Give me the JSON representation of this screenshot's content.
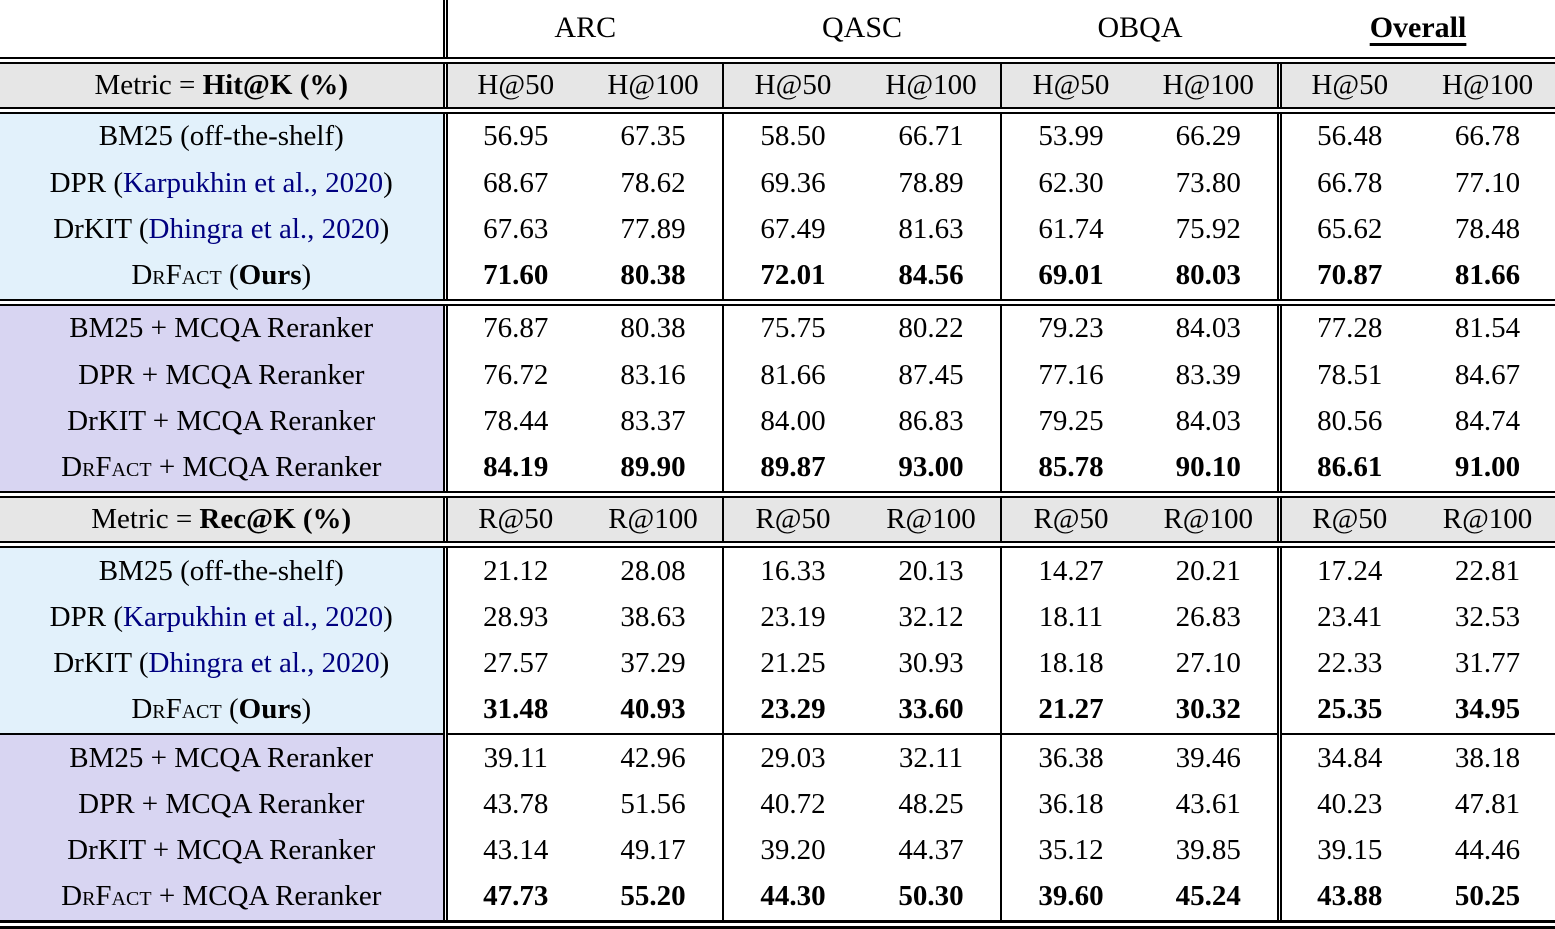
{
  "colors": {
    "header_band_bg": "#e6e6e6",
    "retriever_block_bg": "#e2f1fb",
    "reranker_block_bg": "#d8d5f2",
    "citation_color": "#000080"
  },
  "table": {
    "dataset_headers": [
      {
        "label": "ARC"
      },
      {
        "label": "QASC"
      },
      {
        "label": "OBQA"
      },
      {
        "label": "Overall",
        "bold": true,
        "underline": true
      }
    ],
    "sections": [
      {
        "metric": {
          "prefix": "Metric = ",
          "bold": "Hit@K",
          "suffix": " (%)"
        },
        "subheaders": [
          "H@50",
          "H@100",
          "H@50",
          "H@100",
          "H@50",
          "H@100",
          "H@50",
          "H@100"
        ],
        "blocks": [
          {
            "bg_key": "retriever_block_bg",
            "rows": [
              {
                "method": [
                  {
                    "text": "BM25 (off-the-shelf)"
                  }
                ],
                "values": [
                  "56.95",
                  "67.35",
                  "58.50",
                  "66.71",
                  "53.99",
                  "66.29",
                  "56.48",
                  "66.78"
                ],
                "bold_values": false
              },
              {
                "method": [
                  {
                    "text": "DPR ("
                  },
                  {
                    "text": "Karpukhin et al., 2020",
                    "style": "cite"
                  },
                  {
                    "text": ")"
                  }
                ],
                "values": [
                  "68.67",
                  "78.62",
                  "69.36",
                  "78.89",
                  "62.30",
                  "73.80",
                  "66.78",
                  "77.10"
                ],
                "bold_values": false
              },
              {
                "method": [
                  {
                    "text": "DrKIT ("
                  },
                  {
                    "text": "Dhingra et al., 2020",
                    "style": "cite"
                  },
                  {
                    "text": ")"
                  }
                ],
                "values": [
                  "67.63",
                  "77.89",
                  "67.49",
                  "81.63",
                  "61.74",
                  "75.92",
                  "65.62",
                  "78.48"
                ],
                "bold_values": false
              },
              {
                "method": [
                  {
                    "text": "DrFact",
                    "style": "smallcaps"
                  },
                  {
                    "text": " ("
                  },
                  {
                    "text": "Ours",
                    "style": "bold"
                  },
                  {
                    "text": ")"
                  }
                ],
                "values": [
                  "71.60",
                  "80.38",
                  "72.01",
                  "84.56",
                  "69.01",
                  "80.03",
                  "70.87",
                  "81.66"
                ],
                "bold_values": true
              }
            ]
          },
          {
            "bg_key": "reranker_block_bg",
            "rows": [
              {
                "method": [
                  {
                    "text": "BM25 + MCQA Reranker"
                  }
                ],
                "values": [
                  "76.87",
                  "80.38",
                  "75.75",
                  "80.22",
                  "79.23",
                  "84.03",
                  "77.28",
                  "81.54"
                ],
                "bold_values": false
              },
              {
                "method": [
                  {
                    "text": "DPR + MCQA Reranker"
                  }
                ],
                "values": [
                  "76.72",
                  "83.16",
                  "81.66",
                  "87.45",
                  "77.16",
                  "83.39",
                  "78.51",
                  "84.67"
                ],
                "bold_values": false
              },
              {
                "method": [
                  {
                    "text": "DrKIT + MCQA Reranker"
                  }
                ],
                "values": [
                  "78.44",
                  "83.37",
                  "84.00",
                  "86.83",
                  "79.25",
                  "84.03",
                  "80.56",
                  "84.74"
                ],
                "bold_values": false
              },
              {
                "method": [
                  {
                    "text": "DrFact",
                    "style": "smallcaps"
                  },
                  {
                    "text": " + MCQA Reranker"
                  }
                ],
                "values": [
                  "84.19",
                  "89.90",
                  "89.87",
                  "93.00",
                  "85.78",
                  "90.10",
                  "86.61",
                  "91.00"
                ],
                "bold_values": true
              }
            ]
          }
        ]
      },
      {
        "metric": {
          "prefix": "Metric = ",
          "bold": "Rec@K",
          "suffix": " (%)"
        },
        "subheaders": [
          "R@50",
          "R@100",
          "R@50",
          "R@100",
          "R@50",
          "R@100",
          "R@50",
          "R@100"
        ],
        "blocks": [
          {
            "bg_key": "retriever_block_bg",
            "rows": [
              {
                "method": [
                  {
                    "text": "BM25 (off-the-shelf)"
                  }
                ],
                "values": [
                  "21.12",
                  "28.08",
                  "16.33",
                  "20.13",
                  "14.27",
                  "20.21",
                  "17.24",
                  "22.81"
                ],
                "bold_values": false
              },
              {
                "method": [
                  {
                    "text": "DPR ("
                  },
                  {
                    "text": "Karpukhin et al., 2020",
                    "style": "cite"
                  },
                  {
                    "text": ")"
                  }
                ],
                "values": [
                  "28.93",
                  "38.63",
                  "23.19",
                  "32.12",
                  "18.11",
                  "26.83",
                  "23.41",
                  "32.53"
                ],
                "bold_values": false
              },
              {
                "method": [
                  {
                    "text": "DrKIT ("
                  },
                  {
                    "text": "Dhingra et al., 2020",
                    "style": "cite"
                  },
                  {
                    "text": ")"
                  }
                ],
                "values": [
                  "27.57",
                  "37.29",
                  "21.25",
                  "30.93",
                  "18.18",
                  "27.10",
                  "22.33",
                  "31.77"
                ],
                "bold_values": false
              },
              {
                "method": [
                  {
                    "text": "DrFact",
                    "style": "smallcaps"
                  },
                  {
                    "text": " ("
                  },
                  {
                    "text": "Ours",
                    "style": "bold"
                  },
                  {
                    "text": ")"
                  }
                ],
                "values": [
                  "31.48",
                  "40.93",
                  "23.29",
                  "33.60",
                  "21.27",
                  "30.32",
                  "25.35",
                  "34.95"
                ],
                "bold_values": true
              }
            ]
          },
          {
            "bg_key": "reranker_block_bg",
            "rows": [
              {
                "method": [
                  {
                    "text": "BM25 + MCQA Reranker"
                  }
                ],
                "values": [
                  "39.11",
                  "42.96",
                  "29.03",
                  "32.11",
                  "36.38",
                  "39.46",
                  "34.84",
                  "38.18"
                ],
                "bold_values": false
              },
              {
                "method": [
                  {
                    "text": "DPR + MCQA Reranker"
                  }
                ],
                "values": [
                  "43.78",
                  "51.56",
                  "40.72",
                  "48.25",
                  "36.18",
                  "43.61",
                  "40.23",
                  "47.81"
                ],
                "bold_values": false
              },
              {
                "method": [
                  {
                    "text": "DrKIT + MCQA Reranker"
                  }
                ],
                "values": [
                  "43.14",
                  "49.17",
                  "39.20",
                  "44.37",
                  "35.12",
                  "39.85",
                  "39.15",
                  "44.46"
                ],
                "bold_values": false
              },
              {
                "method": [
                  {
                    "text": "DrFact",
                    "style": "smallcaps"
                  },
                  {
                    "text": " + MCQA Reranker"
                  }
                ],
                "values": [
                  "47.73",
                  "55.20",
                  "44.30",
                  "50.30",
                  "39.60",
                  "45.24",
                  "43.88",
                  "50.25"
                ],
                "bold_values": true
              }
            ]
          }
        ]
      }
    ]
  }
}
